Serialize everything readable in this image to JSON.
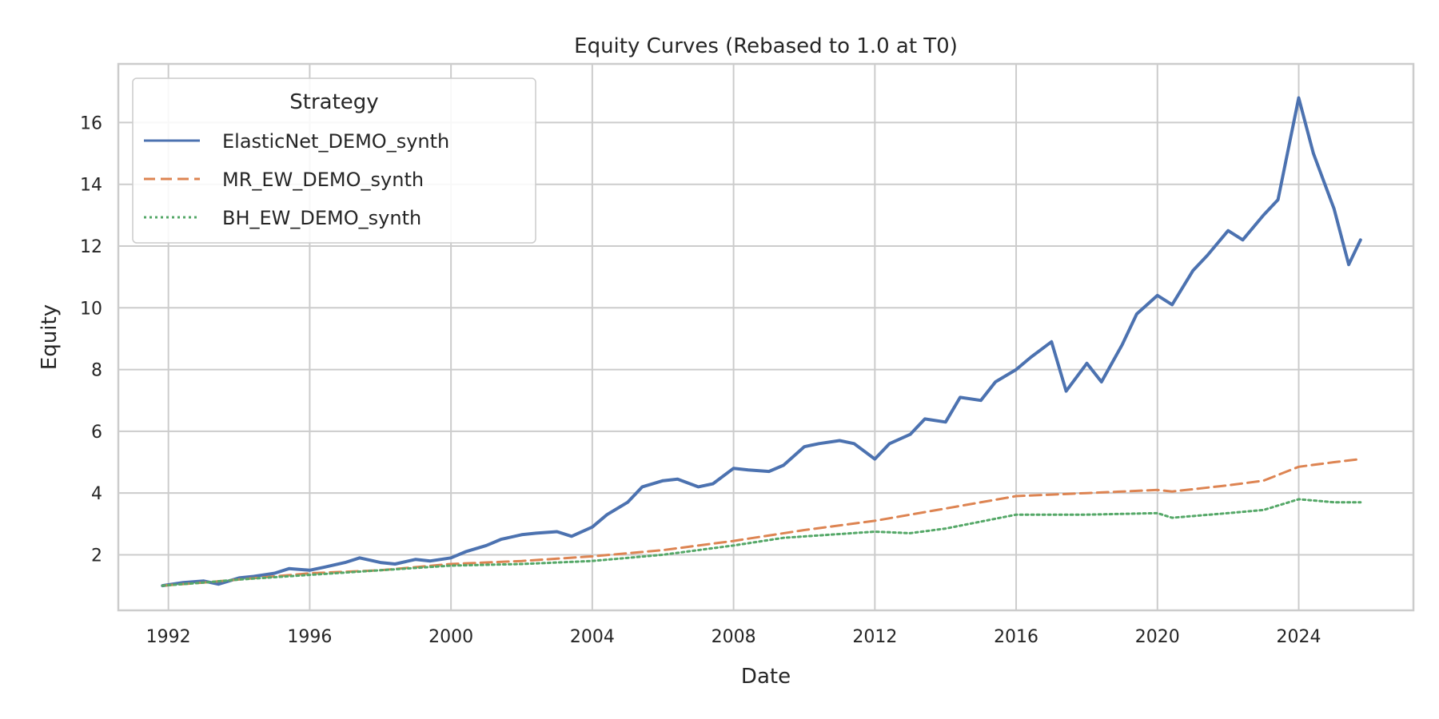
{
  "chart_data": {
    "type": "line",
    "title": "Equity Curves (Rebased to 1.0 at T0)",
    "xlabel": "Date",
    "ylabel": "Equity",
    "x_type": "date",
    "xlim": [
      "1990-08-01",
      "2027-04-01"
    ],
    "ylim": [
      0.2,
      17.9
    ],
    "x_ticks": [
      "1992",
      "1996",
      "2000",
      "2004",
      "2008",
      "2012",
      "2016",
      "2020",
      "2024"
    ],
    "y_ticks": [
      2,
      4,
      6,
      8,
      10,
      12,
      14,
      16
    ],
    "grid": true,
    "legend": {
      "title": "Strategy",
      "position": "top-left"
    },
    "series": [
      {
        "name": "ElasticNet_DEMO_synth",
        "color": "#4c72b0",
        "style": "solid",
        "points": [
          [
            "1991-11-01",
            1.0
          ],
          [
            "1992-06-01",
            1.1
          ],
          [
            "1993-01-01",
            1.15
          ],
          [
            "1993-06-01",
            1.05
          ],
          [
            "1994-01-01",
            1.25
          ],
          [
            "1994-06-01",
            1.3
          ],
          [
            "1995-01-01",
            1.4
          ],
          [
            "1995-06-01",
            1.55
          ],
          [
            "1996-01-01",
            1.5
          ],
          [
            "1996-06-01",
            1.6
          ],
          [
            "1997-01-01",
            1.75
          ],
          [
            "1997-06-01",
            1.9
          ],
          [
            "1998-01-01",
            1.75
          ],
          [
            "1998-06-01",
            1.7
          ],
          [
            "1999-01-01",
            1.85
          ],
          [
            "1999-06-01",
            1.8
          ],
          [
            "2000-01-01",
            1.9
          ],
          [
            "2000-06-01",
            2.1
          ],
          [
            "2001-01-01",
            2.3
          ],
          [
            "2001-06-01",
            2.5
          ],
          [
            "2002-01-01",
            2.65
          ],
          [
            "2002-06-01",
            2.7
          ],
          [
            "2003-01-01",
            2.75
          ],
          [
            "2003-06-01",
            2.6
          ],
          [
            "2004-01-01",
            2.9
          ],
          [
            "2004-06-01",
            3.3
          ],
          [
            "2005-01-01",
            3.7
          ],
          [
            "2005-06-01",
            4.2
          ],
          [
            "2006-01-01",
            4.4
          ],
          [
            "2006-06-01",
            4.45
          ],
          [
            "2007-01-01",
            4.2
          ],
          [
            "2007-06-01",
            4.3
          ],
          [
            "2008-01-01",
            4.8
          ],
          [
            "2008-06-01",
            4.75
          ],
          [
            "2009-01-01",
            4.7
          ],
          [
            "2009-06-01",
            4.9
          ],
          [
            "2010-01-01",
            5.5
          ],
          [
            "2010-06-01",
            5.6
          ],
          [
            "2011-01-01",
            5.7
          ],
          [
            "2011-06-01",
            5.6
          ],
          [
            "2012-01-01",
            5.1
          ],
          [
            "2012-06-01",
            5.6
          ],
          [
            "2013-01-01",
            5.9
          ],
          [
            "2013-06-01",
            6.4
          ],
          [
            "2014-01-01",
            6.3
          ],
          [
            "2014-06-01",
            7.1
          ],
          [
            "2015-01-01",
            7.0
          ],
          [
            "2015-06-01",
            7.6
          ],
          [
            "2016-01-01",
            8.0
          ],
          [
            "2016-06-01",
            8.4
          ],
          [
            "2017-01-01",
            8.9
          ],
          [
            "2017-06-01",
            7.3
          ],
          [
            "2018-01-01",
            8.2
          ],
          [
            "2018-06-01",
            7.6
          ],
          [
            "2019-01-01",
            8.8
          ],
          [
            "2019-06-01",
            9.8
          ],
          [
            "2020-01-01",
            10.4
          ],
          [
            "2020-06-01",
            10.1
          ],
          [
            "2021-01-01",
            11.2
          ],
          [
            "2021-06-01",
            11.7
          ],
          [
            "2022-01-01",
            12.5
          ],
          [
            "2022-06-01",
            12.2
          ],
          [
            "2023-01-01",
            13.0
          ],
          [
            "2023-06-01",
            13.5
          ],
          [
            "2024-01-01",
            16.8
          ],
          [
            "2024-06-01",
            15.0
          ],
          [
            "2025-01-01",
            13.2
          ],
          [
            "2025-06-01",
            11.4
          ],
          [
            "2025-10-01",
            12.2
          ]
        ]
      },
      {
        "name": "MR_EW_DEMO_synth",
        "color": "#dd8452",
        "style": "dashed",
        "points": [
          [
            "1991-11-01",
            1.0
          ],
          [
            "1993-01-01",
            1.1
          ],
          [
            "1994-01-01",
            1.2
          ],
          [
            "1996-01-01",
            1.4
          ],
          [
            "1998-01-01",
            1.5
          ],
          [
            "2000-01-01",
            1.7
          ],
          [
            "2002-01-01",
            1.8
          ],
          [
            "2004-01-01",
            1.95
          ],
          [
            "2006-01-01",
            2.15
          ],
          [
            "2008-01-01",
            2.45
          ],
          [
            "2010-01-01",
            2.8
          ],
          [
            "2012-01-01",
            3.1
          ],
          [
            "2014-01-01",
            3.5
          ],
          [
            "2016-01-01",
            3.9
          ],
          [
            "2018-01-01",
            4.0
          ],
          [
            "2020-01-01",
            4.1
          ],
          [
            "2020-06-01",
            4.05
          ],
          [
            "2022-01-01",
            4.25
          ],
          [
            "2023-01-01",
            4.4
          ],
          [
            "2024-01-01",
            4.85
          ],
          [
            "2025-01-01",
            5.0
          ],
          [
            "2025-10-01",
            5.1
          ]
        ]
      },
      {
        "name": "BH_EW_DEMO_synth",
        "color": "#55a868",
        "style": "dotted",
        "points": [
          [
            "1991-11-01",
            1.0
          ],
          [
            "1993-01-01",
            1.1
          ],
          [
            "1994-01-01",
            1.2
          ],
          [
            "1996-01-01",
            1.35
          ],
          [
            "1998-01-01",
            1.5
          ],
          [
            "2000-01-01",
            1.65
          ],
          [
            "2002-01-01",
            1.7
          ],
          [
            "2004-01-01",
            1.8
          ],
          [
            "2006-01-01",
            2.0
          ],
          [
            "2008-01-01",
            2.3
          ],
          [
            "2009-06-01",
            2.55
          ],
          [
            "2012-01-01",
            2.75
          ],
          [
            "2013-01-01",
            2.7
          ],
          [
            "2014-01-01",
            2.85
          ],
          [
            "2016-01-01",
            3.3
          ],
          [
            "2018-01-01",
            3.3
          ],
          [
            "2020-01-01",
            3.35
          ],
          [
            "2020-06-01",
            3.2
          ],
          [
            "2022-01-01",
            3.35
          ],
          [
            "2023-01-01",
            3.45
          ],
          [
            "2024-01-01",
            3.8
          ],
          [
            "2025-01-01",
            3.7
          ],
          [
            "2025-10-01",
            3.7
          ]
        ]
      }
    ]
  }
}
